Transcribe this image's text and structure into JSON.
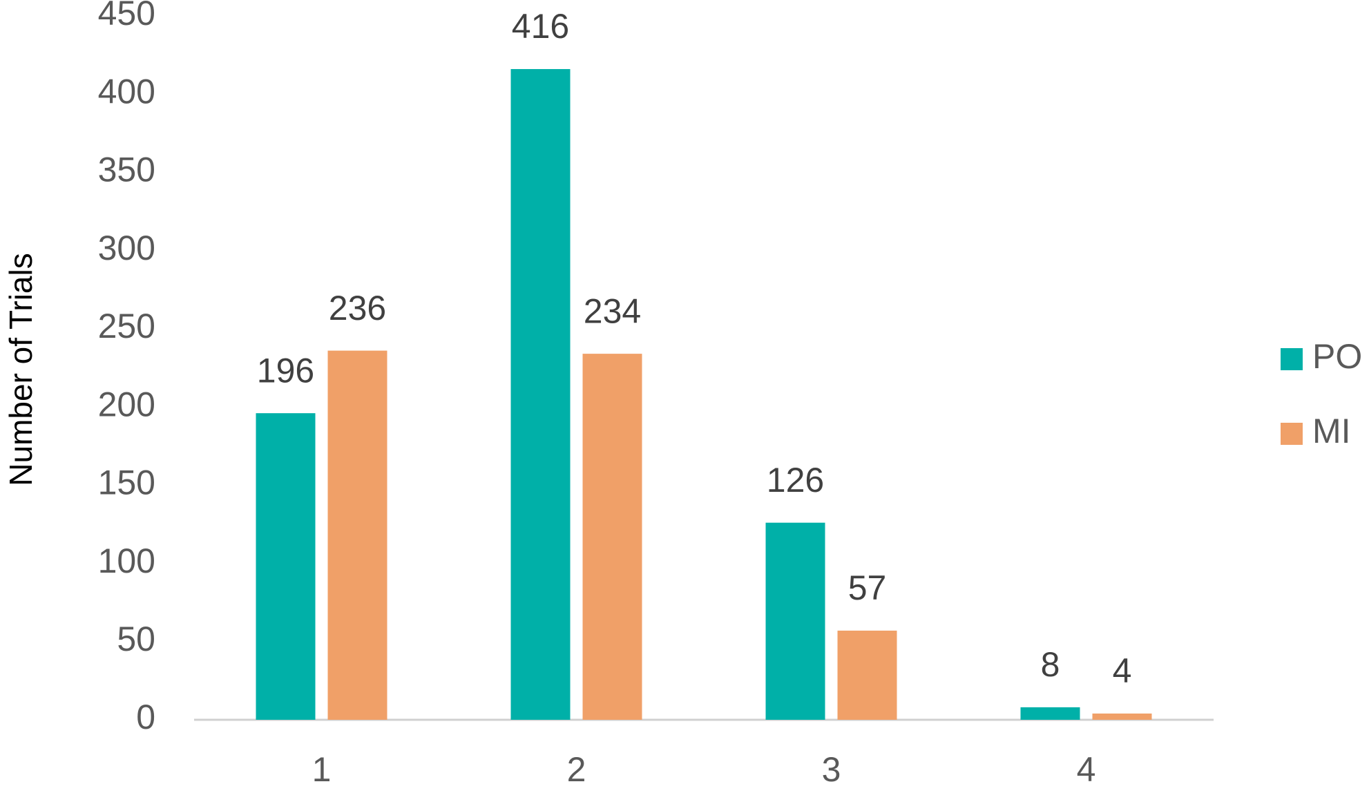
{
  "chart_data": {
    "type": "bar",
    "y_label": "Number of Trials",
    "categories": [
      "1",
      "2",
      "3",
      "4"
    ],
    "series": [
      {
        "name": "PO",
        "color": "#00b0a8",
        "values": [
          196,
          416,
          126,
          8
        ]
      },
      {
        "name": "MI",
        "color": "#f0a068",
        "values": [
          236,
          234,
          57,
          4
        ]
      }
    ],
    "ylim": [
      0,
      450
    ],
    "yticks": [
      0,
      50,
      100,
      150,
      200,
      250,
      300,
      350,
      400,
      450
    ],
    "legend": "right"
  }
}
